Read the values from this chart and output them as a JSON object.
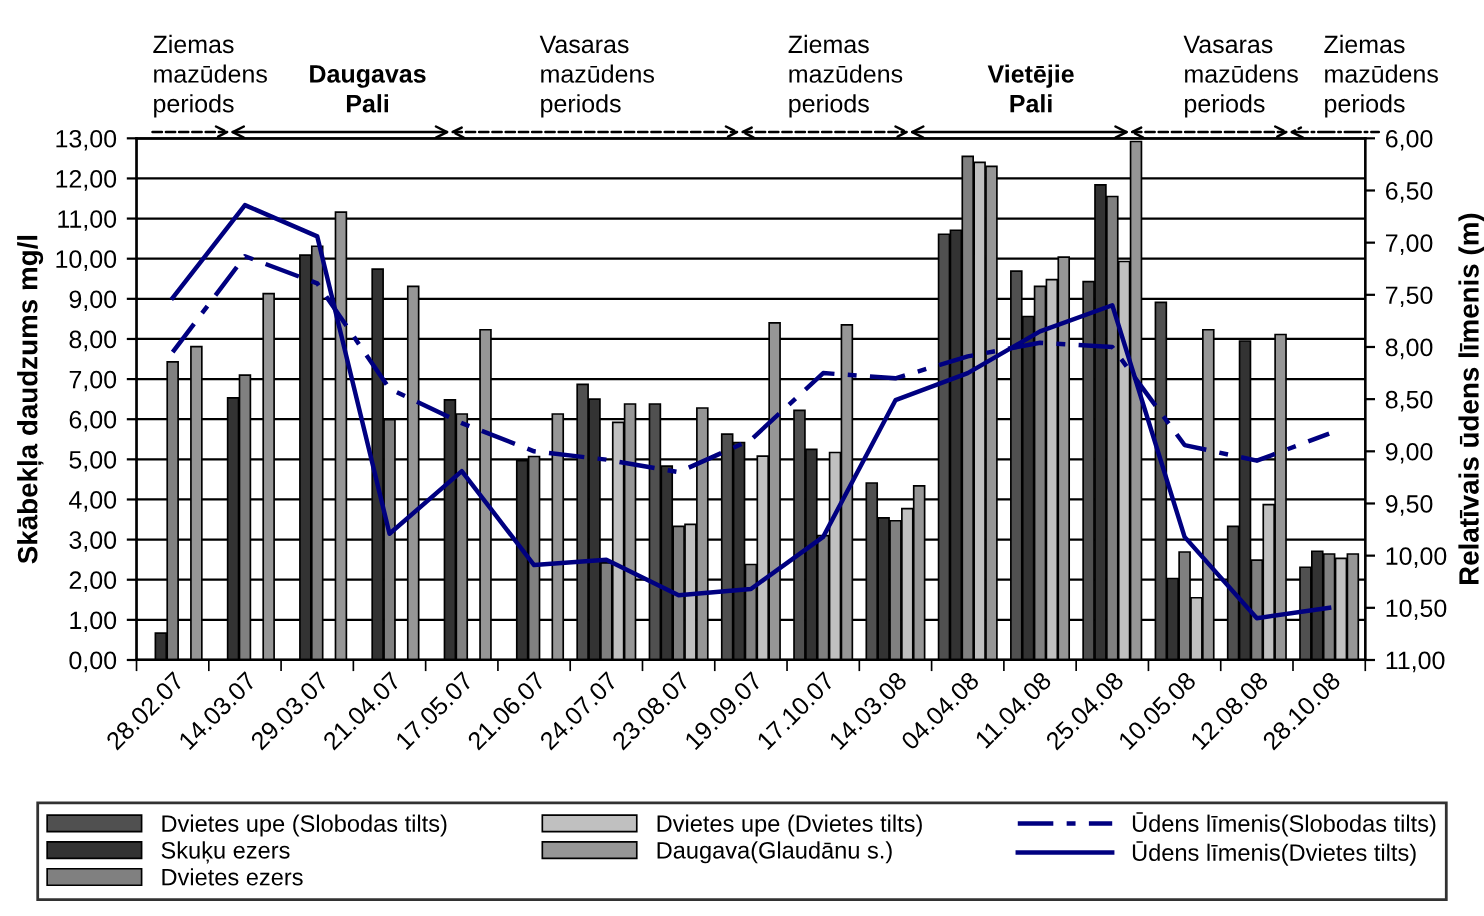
{
  "chart_data": {
    "type": "bar",
    "categories": [
      "28.02.07",
      "14.03.07",
      "29.03.07",
      "21.04.07",
      "17.05.07",
      "21.06.07",
      "24.07.07",
      "23.08.07",
      "19.09.07",
      "17.10.07",
      "14.03.08",
      "04.04.08",
      "11.04.08",
      "25.04.08",
      "10.05.08",
      "12.08.08",
      "28.10.08"
    ],
    "ylabel": "Skābekļa daudzums mg/l",
    "y2label": "Relatīvais ūdens līmenis (m)",
    "ylim": [
      0,
      13
    ],
    "yticks": [
      {
        "value": 0,
        "label": "0,00"
      },
      {
        "value": 1,
        "label": "1,00"
      },
      {
        "value": 2,
        "label": "2,00"
      },
      {
        "value": 3,
        "label": "3,00"
      },
      {
        "value": 4,
        "label": "4,00"
      },
      {
        "value": 5,
        "label": "5,00"
      },
      {
        "value": 6,
        "label": "6,00"
      },
      {
        "value": 7,
        "label": "7,00"
      },
      {
        "value": 8,
        "label": "8,00"
      },
      {
        "value": 9,
        "label": "9,00"
      },
      {
        "value": 10,
        "label": "10,00"
      },
      {
        "value": 11,
        "label": "11,00"
      },
      {
        "value": 12,
        "label": "12,00"
      },
      {
        "value": 13,
        "label": "13,00"
      }
    ],
    "y2lim": [
      11,
      6
    ],
    "y2ticks": [
      {
        "value": 6,
        "label": "6,00"
      },
      {
        "value": 6.5,
        "label": "6,50"
      },
      {
        "value": 7,
        "label": "7,00"
      },
      {
        "value": 7.5,
        "label": "7,50"
      },
      {
        "value": 8,
        "label": "8,00"
      },
      {
        "value": 8.5,
        "label": "8,50"
      },
      {
        "value": 9,
        "label": "9,00"
      },
      {
        "value": 9.5,
        "label": "9,50"
      },
      {
        "value": 10,
        "label": "10,00"
      },
      {
        "value": 10.5,
        "label": "10,50"
      },
      {
        "value": 11,
        "label": "11,00"
      }
    ],
    "grid": "y",
    "legend": "bottom",
    "annotations": [
      "Ziemas\nmazūdens\nperiods",
      "Daugavas\nPali",
      "Vasaras\nmazūdens\nperiods",
      "Ziemas\nmazūdens\nperiods",
      "Vietējie\nPali",
      "Vasaras\nmazūdens\nperiods",
      "Ziemas\nmazūdens\nperiods"
    ],
    "series": [
      {
        "name": "Dvietes upe (Slobodas tilts)",
        "color": "#505050",
        "values": [
          null,
          null,
          null,
          null,
          null,
          null,
          6.87,
          6.38,
          5.63,
          6.22,
          4.41,
          10.61,
          9.69,
          9.43,
          8.91,
          3.33,
          2.31
        ]
      },
      {
        "name": "Skuķu ezers",
        "color": "#333333",
        "values": [
          0.67,
          6.53,
          10.09,
          9.74,
          6.48,
          4.97,
          6.5,
          4.83,
          5.42,
          5.25,
          3.54,
          10.71,
          8.56,
          11.84,
          2.03,
          7.95,
          2.71
        ]
      },
      {
        "name": "Dvietes ezers",
        "color": "#808080",
        "values": [
          7.43,
          7.1,
          10.31,
          5.99,
          6.13,
          5.07,
          2.42,
          3.33,
          2.38,
          3.1,
          3.47,
          12.55,
          9.31,
          11.55,
          2.69,
          2.49,
          2.64
        ]
      },
      {
        "name": "Dvietes upe (Dvietes tilts)",
        "color": "#c0c0c0",
        "values": [
          null,
          null,
          null,
          null,
          null,
          null,
          5.92,
          3.38,
          5.08,
          5.17,
          3.77,
          12.4,
          9.48,
          9.93,
          1.55,
          3.87,
          2.53
        ]
      },
      {
        "name": "Daugava(Glaudānu s.)",
        "color": "#969696",
        "values": [
          7.81,
          9.13,
          11.16,
          9.31,
          8.23,
          6.13,
          6.38,
          6.28,
          8.4,
          8.35,
          4.34,
          12.3,
          10.04,
          12.92,
          8.23,
          8.11,
          2.64
        ]
      },
      {
        "name": "Ūdens līmenis(Slobodas tilts)",
        "type": "line",
        "axis": "y2",
        "color": "#000080",
        "line_style": "dashed",
        "values": [
          8.05,
          7.13,
          7.39,
          8.4,
          8.73,
          9.0,
          9.08,
          9.2,
          8.89,
          8.25,
          8.3,
          8.09,
          7.96,
          8.0,
          8.94,
          9.09,
          8.83
        ]
      },
      {
        "name": "Ūdens līmenis(Dvietes tilts)",
        "type": "line",
        "axis": "y2",
        "color": "#000080",
        "line_style": "solid",
        "values": [
          7.53,
          6.64,
          6.94,
          9.79,
          9.19,
          10.09,
          10.04,
          10.38,
          10.32,
          9.82,
          8.51,
          8.25,
          7.85,
          7.6,
          9.82,
          10.6,
          10.5
        ]
      }
    ]
  }
}
